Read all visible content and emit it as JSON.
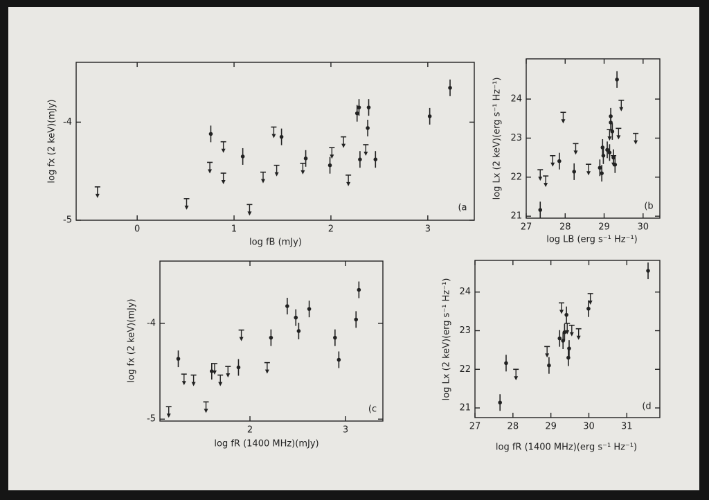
{
  "chart_data": [
    {
      "type": "scatter",
      "panel_label": "(a",
      "xlabel": "log fB (mJy)",
      "ylabel": "log fx (2 keV)(mJy)",
      "xlim": [
        -0.63,
        3.48
      ],
      "ylim": [
        -5,
        -3.39
      ],
      "xticks": [
        0,
        1,
        2,
        3
      ],
      "yticks": [
        -5,
        -4
      ],
      "series": [
        {
          "color": "#222222",
          "marker": "dot",
          "x": [
            0.76,
            1.09,
            1.49,
            1.74,
            1.99,
            2.27,
            2.29,
            2.39,
            2.38,
            2.3,
            2.46,
            3.02,
            3.23
          ],
          "values": [
            -4.12,
            -4.35,
            -4.15,
            -4.37,
            -4.44,
            -3.91,
            -3.85,
            -3.85,
            -4.06,
            -4.38,
            -4.38,
            -3.94,
            -3.65
          ]
        },
        {
          "color": "#222222",
          "marker": "upper-limit",
          "x": [
            -0.41,
            0.51,
            0.75,
            0.89,
            0.89,
            1.16,
            1.3,
            1.44,
            1.41,
            1.71,
            2.01,
            2.13,
            2.18,
            2.36
          ],
          "values": [
            -4.66,
            -4.78,
            -4.41,
            -4.2,
            -4.52,
            -4.84,
            -4.51,
            -4.44,
            -4.05,
            -4.42,
            -4.26,
            -4.15,
            -4.54,
            -4.23
          ]
        }
      ]
    },
    {
      "type": "scatter",
      "panel_label": "(b",
      "xlabel": "log LB (erg s⁻¹ Hz⁻¹)",
      "ylabel": "log Lx (2 keV)(erg s⁻¹ Hz⁻¹)",
      "xlim": [
        27,
        30.43
      ],
      "ylim": [
        20.95,
        25.03
      ],
      "xticks": [
        27,
        28,
        29,
        30
      ],
      "yticks": [
        21,
        22,
        23,
        24
      ],
      "series": [
        {
          "color": "#222222",
          "marker": "dot",
          "x": [
            27.36,
            27.85,
            28.23,
            28.89,
            28.94,
            28.96,
            28.98,
            29.08,
            29.14,
            29.17,
            29.17,
            29.21,
            29.24,
            29.28,
            29.33
          ],
          "values": [
            21.16,
            22.41,
            22.14,
            22.24,
            22.1,
            22.76,
            22.55,
            22.7,
            22.63,
            23.56,
            23.4,
            23.17,
            22.5,
            22.32,
            24.5
          ]
        },
        {
          "color": "#222222",
          "marker": "upper-limit",
          "x": [
            27.36,
            27.5,
            27.68,
            27.95,
            28.27,
            28.6,
            29.14,
            29.37,
            29.44,
            29.81,
            29.24
          ],
          "values": [
            22.19,
            22.03,
            22.55,
            23.66,
            22.86,
            22.33,
            23.22,
            23.25,
            23.97,
            23.12,
            22.55
          ]
        }
      ]
    },
    {
      "type": "scatter",
      "panel_label": "(c",
      "xlabel": "log fR (1400 MHz)(mJy)",
      "ylabel": "log fx (2 keV)(mJy)",
      "xlim": [
        1.058,
        3.391
      ],
      "ylim": [
        -5.02,
        -3.35
      ],
      "xticks": [
        2,
        3
      ],
      "yticks": [
        -5,
        -4
      ],
      "series": [
        {
          "color": "#222222",
          "marker": "dot",
          "x": [
            1.25,
            1.6,
            1.88,
            2.22,
            2.39,
            2.48,
            2.51,
            2.62,
            2.89,
            2.93,
            3.11,
            3.14
          ],
          "values": [
            -4.37,
            -4.5,
            -4.46,
            -4.15,
            -3.82,
            -3.94,
            -4.08,
            -3.85,
            -4.15,
            -4.38,
            -3.96,
            -3.65
          ]
        },
        {
          "color": "#222222",
          "marker": "upper-limit",
          "x": [
            1.15,
            1.31,
            1.41,
            1.54,
            1.63,
            1.69,
            1.77,
            1.91,
            2.18
          ],
          "values": [
            -4.87,
            -4.53,
            -4.54,
            -4.82,
            -4.42,
            -4.54,
            -4.45,
            -4.07,
            -4.41
          ]
        }
      ]
    },
    {
      "type": "scatter",
      "panel_label": "(d",
      "xlabel": "log fR (1400 MHz)(erg s⁻¹ Hz⁻¹)",
      "ylabel": "log Lx (2 keV)(erg s⁻¹ Hz⁻¹)",
      "xlim": [
        27,
        31.87
      ],
      "ylim": [
        20.75,
        24.82
      ],
      "xticks": [
        27,
        28,
        29,
        30,
        31
      ],
      "yticks": [
        21,
        22,
        23,
        24
      ],
      "series": [
        {
          "color": "#222222",
          "marker": "dot",
          "x": [
            27.66,
            27.82,
            28.95,
            29.23,
            29.32,
            29.41,
            29.36,
            29.46,
            29.48,
            29.99,
            31.56
          ],
          "values": [
            21.14,
            22.16,
            22.1,
            22.8,
            22.74,
            23.41,
            22.96,
            22.3,
            22.54,
            23.57,
            24.55
          ]
        },
        {
          "color": "#222222",
          "marker": "upper-limit",
          "x": [
            28.08,
            28.9,
            29.28,
            29.43,
            29.55,
            29.73,
            30.04
          ],
          "values": [
            22.0,
            22.59,
            23.72,
            23.19,
            23.14,
            23.05,
            23.96
          ]
        }
      ]
    }
  ]
}
